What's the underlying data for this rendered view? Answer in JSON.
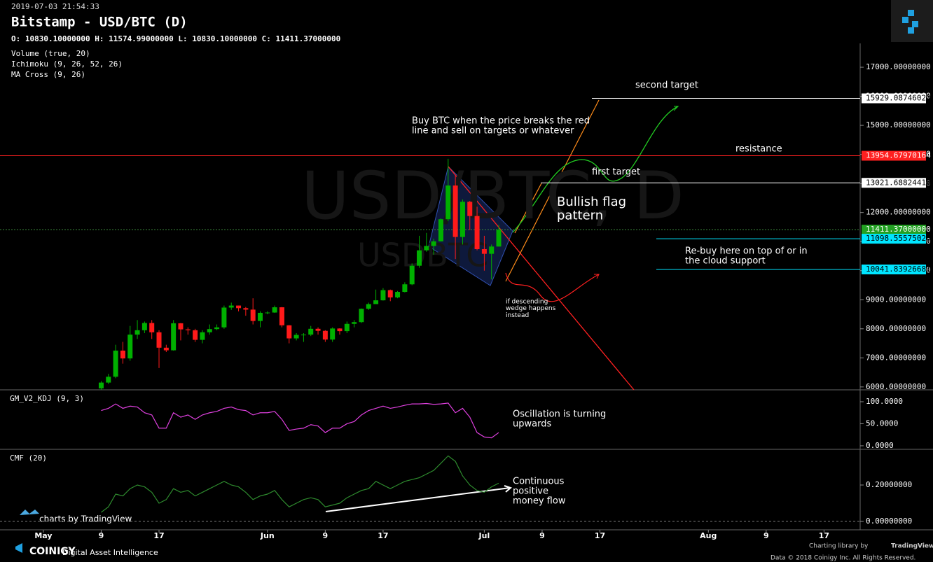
{
  "chart_data": {
    "type": "candlestick",
    "timestamp": "2019-07-03 21:54:33",
    "title": "Bitstamp - USD/BTC (D)",
    "ohlc_text": "O: 10830.10000000 H: 11574.99000000 L: 10830.10000000 C: 11411.37000000",
    "indicators": [
      "Volume (true, 20)",
      "Ichimoku (9, 26, 52, 26)",
      "MA Cross (9, 26)"
    ],
    "watermark": [
      "USD/BTC, D",
      "USDBTC"
    ],
    "up_color": "#00b000",
    "down_color": "#ff1a1a",
    "xlim": [
      "2019-04-25",
      "2019-08-22"
    ],
    "xticks": [
      {
        "value": "2019-05-01",
        "label": "May"
      },
      {
        "value": "2019-05-09",
        "label": "9"
      },
      {
        "value": "2019-05-17",
        "label": "17"
      },
      {
        "value": "2019-06-01",
        "label": "Jun"
      },
      {
        "value": "2019-06-09",
        "label": "9"
      },
      {
        "value": "2019-06-17",
        "label": "17"
      },
      {
        "value": "2019-07-01",
        "label": "Jul"
      },
      {
        "value": "2019-07-09",
        "label": "9"
      },
      {
        "value": "2019-07-17",
        "label": "17"
      },
      {
        "value": "2019-08-01",
        "label": "Aug"
      },
      {
        "value": "2019-08-09",
        "label": "9"
      },
      {
        "value": "2019-08-17",
        "label": "17"
      }
    ],
    "ylim": [
      5900,
      17820
    ],
    "yticks": [
      {
        "value": 17000,
        "label": "17000.00000000"
      },
      {
        "value": 16000,
        "label": "16000.00000000"
      },
      {
        "value": 15000,
        "label": "15000.00000000"
      },
      {
        "value": 14000,
        "label": "14000.00000000"
      },
      {
        "value": 13000,
        "label": "13000.00000000"
      },
      {
        "value": 12000,
        "label": "12000.00000000"
      },
      {
        "value": 11000,
        "label": "11000.00000000"
      },
      {
        "value": 10000,
        "label": "10000.00000000"
      },
      {
        "value": 9000,
        "label": "9000.00000000"
      },
      {
        "value": 8000,
        "label": "8000.00000000"
      },
      {
        "value": 7000,
        "label": "7000.00000000"
      },
      {
        "value": 6000,
        "label": "6000.00000000"
      }
    ],
    "x": [
      "2019-05-09",
      "2019-05-10",
      "2019-05-11",
      "2019-05-12",
      "2019-05-13",
      "2019-05-14",
      "2019-05-15",
      "2019-05-16",
      "2019-05-17",
      "2019-05-18",
      "2019-05-19",
      "2019-05-20",
      "2019-05-21",
      "2019-05-22",
      "2019-05-23",
      "2019-05-24",
      "2019-05-25",
      "2019-05-26",
      "2019-05-27",
      "2019-05-28",
      "2019-05-29",
      "2019-05-30",
      "2019-05-31",
      "2019-06-01",
      "2019-06-02",
      "2019-06-03",
      "2019-06-04",
      "2019-06-05",
      "2019-06-06",
      "2019-06-07",
      "2019-06-08",
      "2019-06-09",
      "2019-06-10",
      "2019-06-11",
      "2019-06-12",
      "2019-06-13",
      "2019-06-14",
      "2019-06-15",
      "2019-06-16",
      "2019-06-17",
      "2019-06-18",
      "2019-06-19",
      "2019-06-20",
      "2019-06-21",
      "2019-06-22",
      "2019-06-23",
      "2019-06-24",
      "2019-06-25",
      "2019-06-26",
      "2019-06-27",
      "2019-06-28",
      "2019-06-29",
      "2019-06-30",
      "2019-07-01",
      "2019-07-02",
      "2019-07-03"
    ],
    "open": [
      5950,
      6150,
      6350,
      7250,
      6980,
      7800,
      7950,
      8200,
      7880,
      7350,
      7260,
      8190,
      7980,
      7950,
      7620,
      7880,
      7990,
      8050,
      8730,
      8800,
      8710,
      8660,
      8270,
      8550,
      8560,
      8740,
      8120,
      7670,
      7790,
      7800,
      8000,
      7930,
      7630,
      8010,
      7920,
      8170,
      8230,
      8690,
      8850,
      8980,
      9330,
      9080,
      9270,
      9530,
      10170,
      10700,
      10850,
      11010,
      11770,
      12930,
      11160,
      12370,
      11880,
      10740,
      10580,
      10830.1
    ],
    "high": [
      6200,
      6450,
      7450,
      7550,
      8100,
      8300,
      8250,
      8300,
      7950,
      7450,
      8300,
      8200,
      8050,
      8000,
      7950,
      8150,
      8150,
      8800,
      8900,
      8800,
      8750,
      9050,
      8600,
      8600,
      8800,
      8750,
      8130,
      7850,
      7850,
      8100,
      8050,
      7950,
      8050,
      8020,
      8250,
      8300,
      8700,
      8900,
      9350,
      9400,
      9350,
      9300,
      9600,
      10250,
      11200,
      11300,
      11100,
      11800,
      13850,
      13300,
      12450,
      12400,
      12200,
      11200,
      10900,
      11574.99
    ],
    "low": [
      5900,
      6100,
      6300,
      6800,
      6900,
      7650,
      7850,
      7650,
      6650,
      7200,
      7250,
      7600,
      7800,
      7550,
      7500,
      7800,
      7950,
      8000,
      8650,
      8600,
      8450,
      8150,
      8050,
      8500,
      8550,
      8050,
      7500,
      7600,
      7550,
      7750,
      7800,
      7550,
      7550,
      7800,
      7850,
      8050,
      8200,
      8650,
      8850,
      8970,
      8950,
      9050,
      9250,
      9500,
      10100,
      10650,
      10550,
      11000,
      11700,
      10400,
      10900,
      11400,
      10700,
      10000,
      9700,
      10830.1
    ],
    "close": [
      6150,
      6350,
      7250,
      6980,
      7800,
      7950,
      8200,
      7880,
      7350,
      7260,
      8190,
      7980,
      7950,
      7620,
      7880,
      7990,
      8050,
      8730,
      8800,
      8710,
      8660,
      8270,
      8550,
      8560,
      8740,
      8120,
      7670,
      7790,
      7800,
      8000,
      7930,
      7630,
      8010,
      7920,
      8170,
      8230,
      8690,
      8850,
      8980,
      9330,
      9080,
      9270,
      9530,
      10170,
      10700,
      10850,
      11010,
      11770,
      12930,
      11160,
      12370,
      11880,
      10740,
      10580,
      10830.1,
      11411.37
    ],
    "levels": [
      {
        "value": 15929.08746023,
        "label": "15929.08746023",
        "color": "#ffffff"
      },
      {
        "value": 13954.67970164,
        "label": "13954.67970164",
        "color": "#ff2020"
      },
      {
        "value": 13021.6882441,
        "label": "13021.68824410",
        "color": "#ffffff"
      },
      {
        "value": 11411.37,
        "label": "11411.37000000",
        "color": "#22a022"
      },
      {
        "value": 11098.55575026,
        "label": "11098.55575026",
        "color": "#00e5ff"
      },
      {
        "value": 10041.83926681,
        "label": "10041.83926681",
        "color": "#00e5ff"
      }
    ],
    "annotations": [
      [
        "second target"
      ],
      [
        "Buy BTC when the price breaks the red",
        "line and sell on targets or whatever"
      ],
      [
        "resistance"
      ],
      [
        "first target"
      ],
      [
        "Bullish flag",
        "pattern"
      ],
      [
        "Re-buy here on top of or in",
        "the cloud support"
      ],
      [
        "if descending",
        "wedge happens",
        "instead"
      ],
      [
        "Oscillation is turning",
        "upwards"
      ],
      [
        "Continuous",
        "positive",
        "money flow"
      ]
    ],
    "panels": [
      {
        "type": "line",
        "title": "GM_V2_KDJ (9, 3)",
        "color": "#e040e0",
        "ylim": [
          -8,
          127
        ],
        "yticks": [
          {
            "value": 100,
            "label": "100.0000"
          },
          {
            "value": 50,
            "label": "50.0000"
          },
          {
            "value": 0,
            "label": "0.0000"
          }
        ],
        "values": [
          80,
          85,
          95,
          85,
          90,
          88,
          75,
          70,
          40,
          40,
          75,
          65,
          70,
          60,
          70,
          75,
          78,
          85,
          88,
          82,
          80,
          70,
          75,
          75,
          78,
          60,
          35,
          38,
          40,
          48,
          45,
          30,
          40,
          40,
          50,
          55,
          70,
          80,
          85,
          90,
          85,
          88,
          92,
          95,
          95,
          96,
          94,
          95,
          97,
          75,
          85,
          65,
          30,
          20,
          18,
          30
        ]
      },
      {
        "type": "line",
        "title": "CMF (20)",
        "color": "#2e8b2e",
        "ylim": [
          -0.046,
          0.396
        ],
        "yticks": [
          {
            "value": 0.2,
            "label": "0.20000000"
          },
          {
            "value": 0,
            "label": "0.00000000"
          }
        ],
        "values": [
          0.05,
          0.08,
          0.15,
          0.14,
          0.18,
          0.2,
          0.19,
          0.16,
          0.1,
          0.12,
          0.18,
          0.16,
          0.17,
          0.14,
          0.16,
          0.18,
          0.2,
          0.22,
          0.2,
          0.19,
          0.16,
          0.12,
          0.14,
          0.15,
          0.17,
          0.12,
          0.08,
          0.1,
          0.12,
          0.13,
          0.12,
          0.08,
          0.09,
          0.1,
          0.13,
          0.15,
          0.17,
          0.18,
          0.22,
          0.2,
          0.18,
          0.2,
          0.22,
          0.23,
          0.24,
          0.26,
          0.28,
          0.32,
          0.36,
          0.33,
          0.25,
          0.2,
          0.17,
          0.16,
          0.19,
          0.21
        ]
      }
    ],
    "footer": {
      "tv_badge": "charts by TradingView",
      "brand": "COINIGY",
      "tagline": "Digital Asset Intelligence",
      "library": "Charting library by",
      "library_name": "TradingView",
      "copyright": "Data © 2018  Coinigy Inc. All Rights Reserved."
    }
  }
}
